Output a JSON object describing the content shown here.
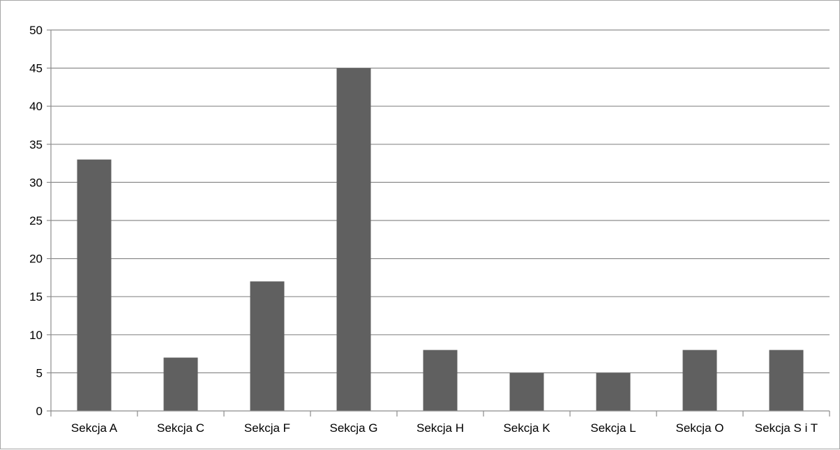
{
  "chart_data": {
    "type": "bar",
    "categories": [
      "Sekcja A",
      "Sekcja C",
      "Sekcja F",
      "Sekcja G",
      "Sekcja H",
      "Sekcja K",
      "Sekcja L",
      "Sekcja O",
      "Sekcja S i T"
    ],
    "values": [
      33,
      7,
      17,
      45,
      8,
      5,
      5,
      8,
      8
    ],
    "yticks": [
      0,
      5,
      10,
      15,
      20,
      25,
      30,
      35,
      40,
      45,
      50
    ],
    "ylim": [
      0,
      50
    ],
    "grid": true,
    "legend": "none",
    "colors": {
      "bar": "#606060",
      "grid": "#8c8c8c",
      "axis": "#8c8c8c"
    }
  }
}
